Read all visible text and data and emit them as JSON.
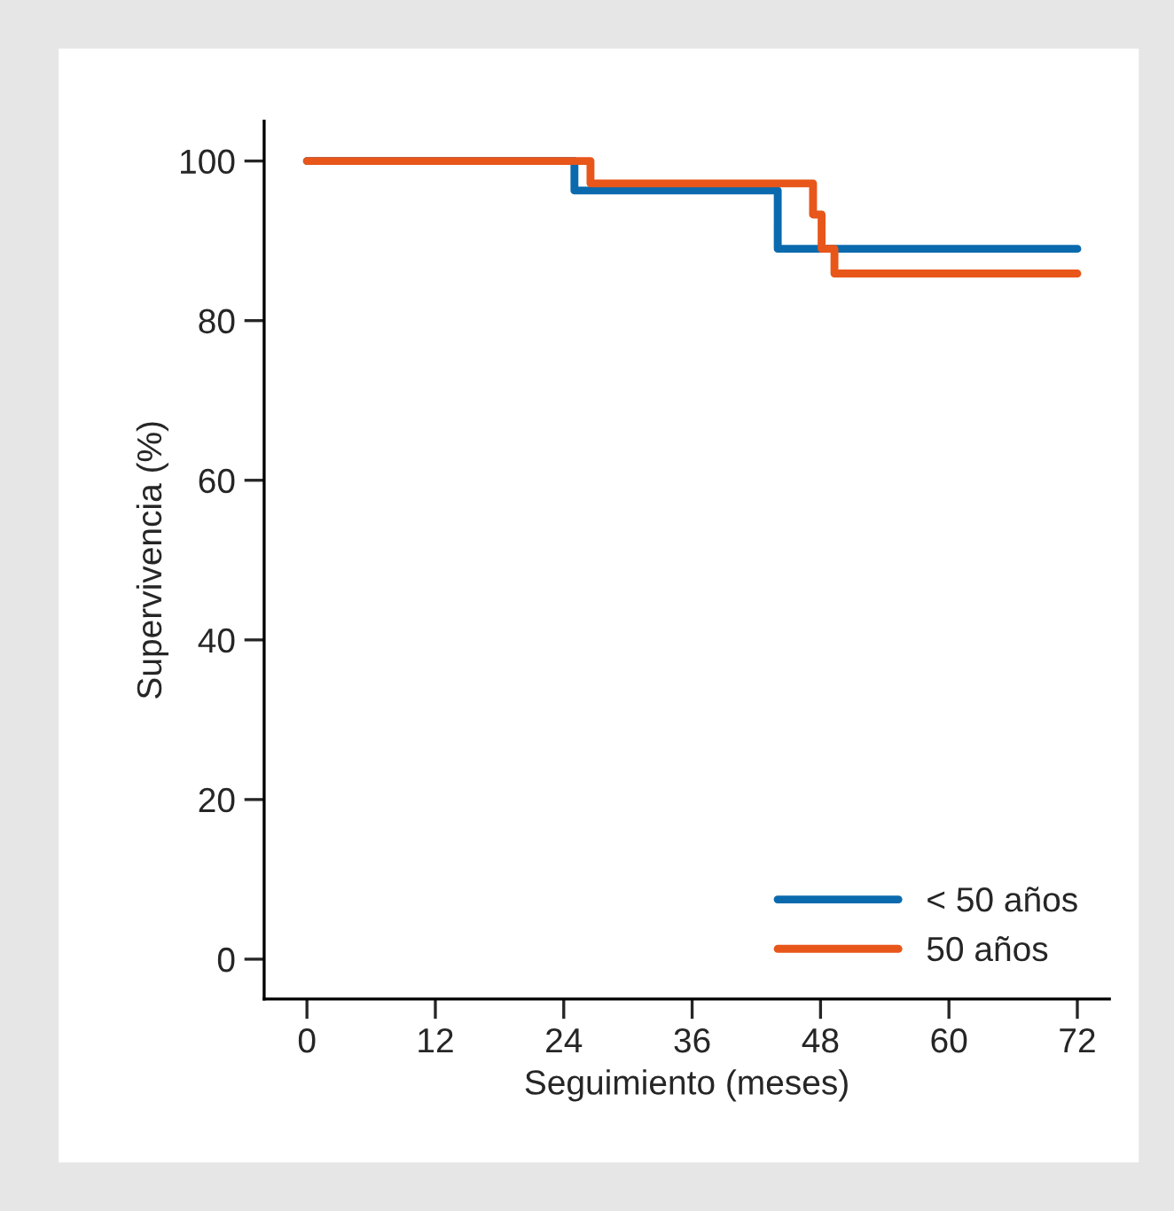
{
  "chart_data": {
    "type": "step",
    "xlabel": "Seguimiento (meses)",
    "ylabel": "Supervivencia (%)",
    "xlim": [
      -4,
      75
    ],
    "ylim": [
      -5,
      105
    ],
    "xticks": [
      0,
      12,
      24,
      36,
      48,
      60,
      72
    ],
    "yticks": [
      0,
      20,
      40,
      60,
      80,
      100
    ],
    "grid": false,
    "legend": "bottom right",
    "line_style": "solid",
    "marker": "none",
    "series": [
      {
        "name": "< 50 años",
        "color": "#0a6aad",
        "x": [
          0,
          25,
          44,
          72
        ],
        "values": [
          100,
          96.3,
          89,
          89
        ]
      },
      {
        "name": "50 años",
        "color": "#e8561a",
        "x": [
          0,
          26.5,
          47.3,
          48.1,
          49.3,
          72
        ],
        "values": [
          100,
          97.2,
          93.3,
          89,
          85.9,
          85.9
        ]
      }
    ]
  }
}
